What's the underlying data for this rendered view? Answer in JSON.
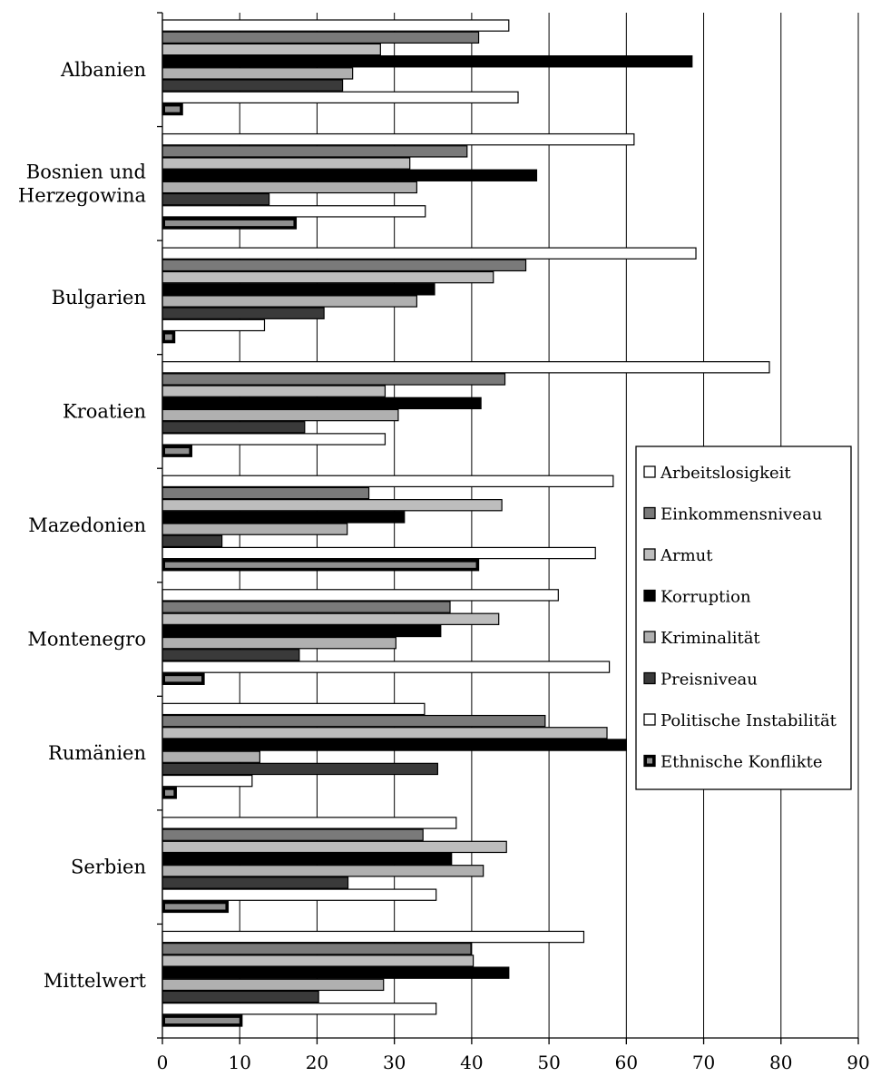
{
  "chart_data": {
    "type": "bar",
    "orientation": "horizontal",
    "categories": [
      "Albanien",
      "Bosnien und Herzegowina",
      "Bulgarien",
      "Kroatien",
      "Mazedonien",
      "Montenegro",
      "Rumänien",
      "Serbien",
      "Mittelwert"
    ],
    "category_label_lines": [
      [
        "Albanien"
      ],
      [
        "Bosnien und",
        "Herzegowina"
      ],
      [
        "Bulgarien"
      ],
      [
        "Kroatien"
      ],
      [
        "Mazedonien"
      ],
      [
        "Montenegro"
      ],
      [
        "Rumänien"
      ],
      [
        "Serbien"
      ],
      [
        "Mittelwert"
      ]
    ],
    "xlim": [
      0,
      90
    ],
    "xticks": [
      0,
      10,
      20,
      30,
      40,
      50,
      60,
      70,
      80,
      90
    ],
    "grid": "vertical",
    "legend_position": "right",
    "title": "",
    "xlabel": "",
    "ylabel": "",
    "series": [
      {
        "name": "Arbeitslosigkeit",
        "color": "#ffffff",
        "values": [
          44.8,
          61.0,
          69.0,
          78.5,
          58.3,
          51.2,
          33.9,
          38.0,
          54.5
        ]
      },
      {
        "name": "Einkommensniveau",
        "color": "#7a7a7a",
        "values": [
          40.9,
          39.4,
          47.0,
          44.3,
          26.7,
          37.2,
          49.5,
          33.7,
          39.9
        ]
      },
      {
        "name": "Armut",
        "color": "#bdbdbd",
        "values": [
          28.2,
          32.0,
          42.8,
          28.8,
          43.9,
          43.5,
          57.5,
          44.5,
          40.2
        ]
      },
      {
        "name": "Korruption",
        "color": "#000000",
        "values": [
          68.5,
          48.4,
          35.2,
          41.2,
          31.3,
          36.0,
          60.0,
          37.4,
          44.8
        ]
      },
      {
        "name": "Kriminalität",
        "color": "#b0b0b0",
        "values": [
          24.6,
          32.9,
          32.9,
          30.5,
          23.9,
          30.2,
          12.6,
          41.5,
          28.6
        ]
      },
      {
        "name": "Preisniveau",
        "color": "#3a3a3a",
        "values": [
          23.3,
          13.8,
          20.9,
          18.4,
          7.7,
          17.7,
          35.6,
          24.0,
          20.2
        ]
      },
      {
        "name": "Politische Instabilität",
        "color": "#ffffff",
        "values": [
          46.0,
          34.0,
          13.2,
          28.8,
          56.0,
          57.8,
          11.6,
          35.4,
          35.4
        ]
      },
      {
        "name": "Ethnische Konflikte",
        "color": "#000000",
        "fill_inner": "#8f8f8f",
        "values": [
          2.6,
          17.3,
          1.6,
          3.8,
          40.9,
          5.4,
          1.8,
          8.5,
          10.3
        ]
      }
    ]
  }
}
